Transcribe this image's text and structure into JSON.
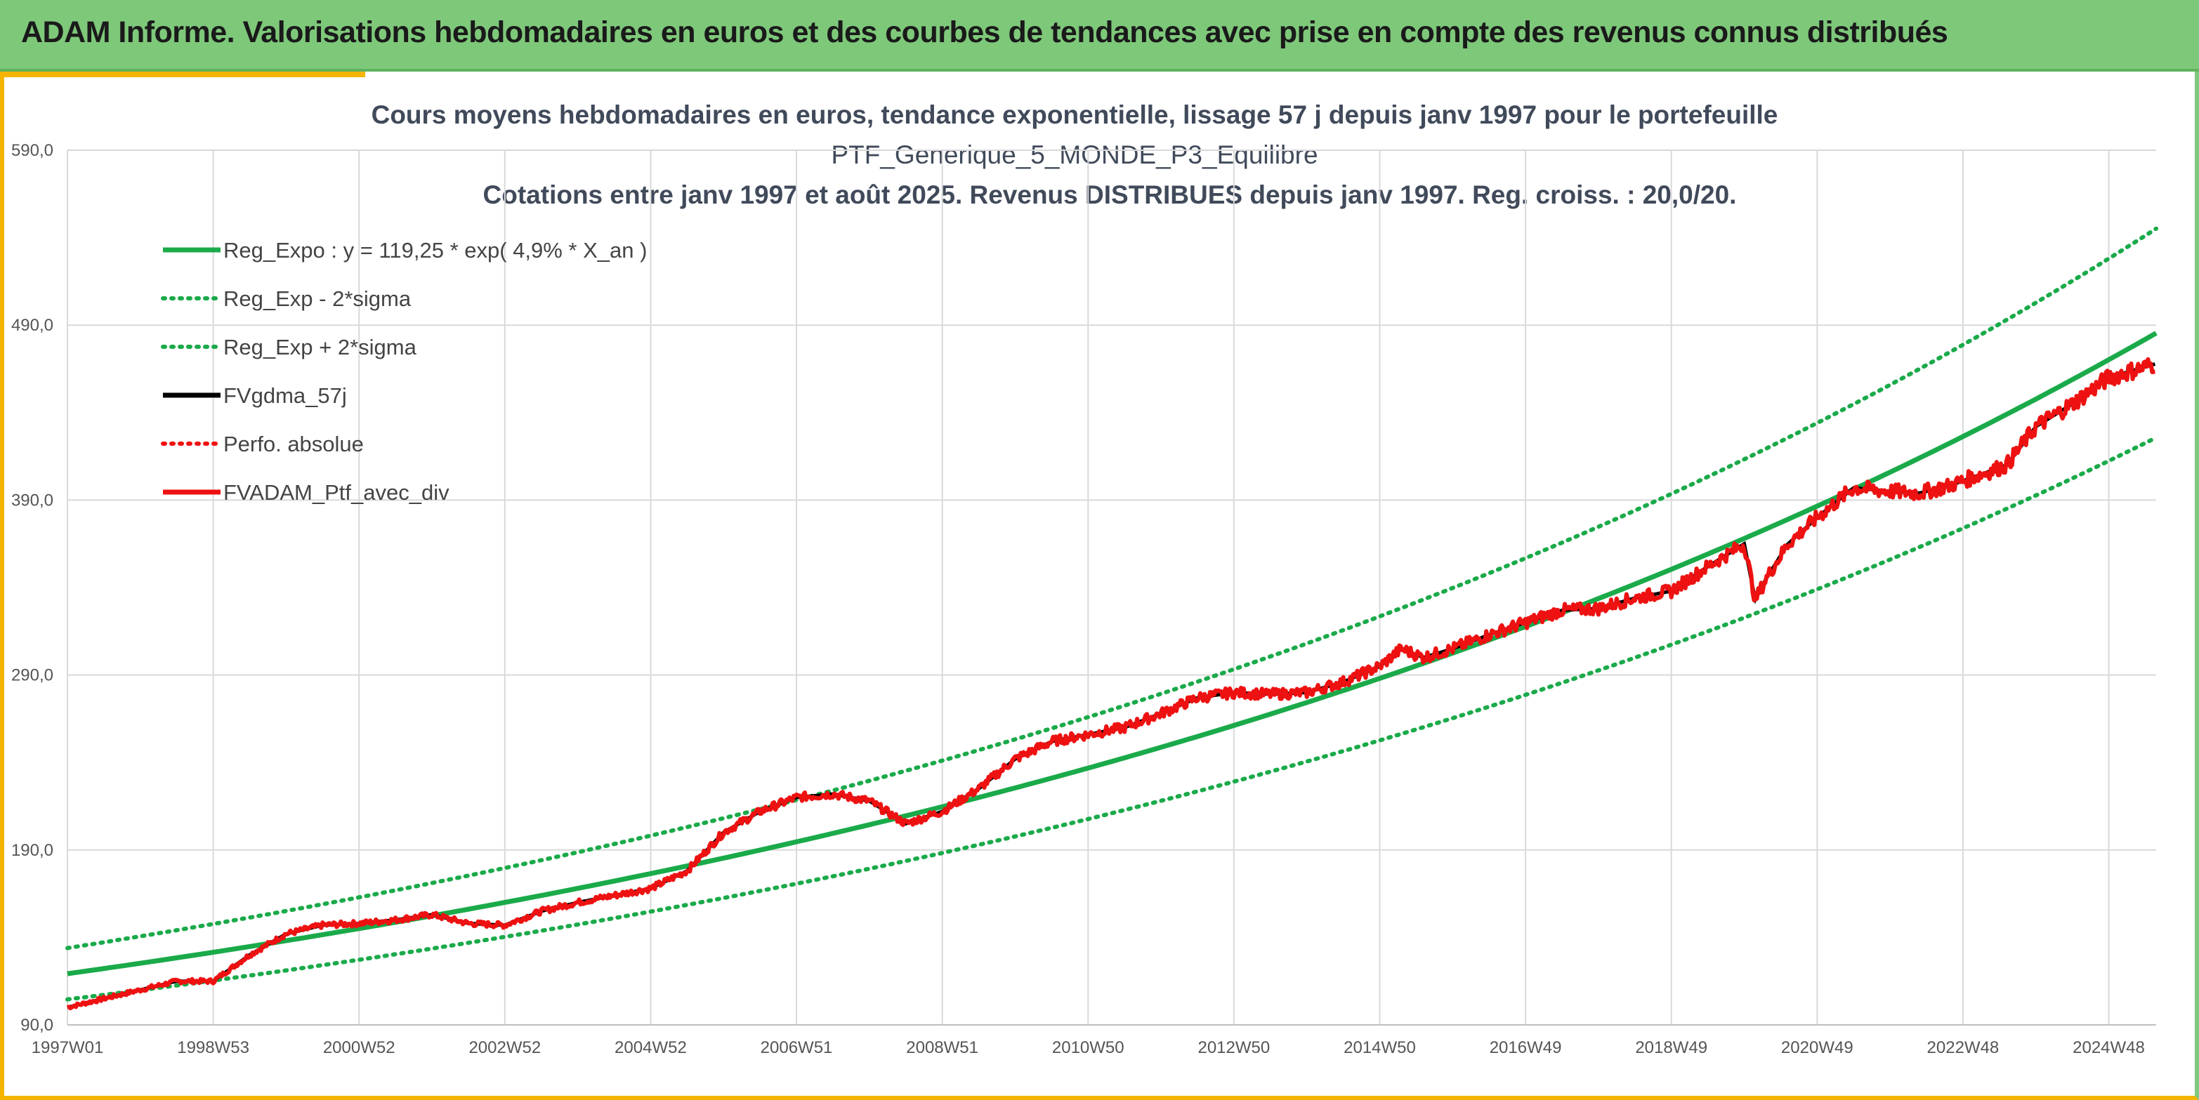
{
  "header": {
    "title": "ADAM Informe. Valorisations hebdomadaires en euros et des courbes de tendances avec prise en compte des revenus connus distribués"
  },
  "colors": {
    "header_bg": "#7ec87a",
    "accent": "#f4b400",
    "reg_green": "#1aaa4a",
    "ptf_red": "#ee1111",
    "ma_black": "#000000"
  },
  "chart_data": {
    "type": "line",
    "title_lines": [
      "Cours moyens hebdomadaires en euros, tendance exponentielle, lissage 57 j depuis janv 1997 pour le portefeuille",
      "PTF_Generique_5_MONDE_P3_Equilibre",
      "Cotations entre janv 1997 et août 2025. Revenus DISTRIBUES depuis janv 1997. Reg. croiss. : 20,0/20."
    ],
    "x_tick_labels": [
      "1997W01",
      "1998W53",
      "2000W52",
      "2002W52",
      "2004W52",
      "2006W51",
      "2008W51",
      "2010W50",
      "2012W50",
      "2014W50",
      "2016W49",
      "2018W49",
      "2020W49",
      "2022W48",
      "2024W48"
    ],
    "x_tick_years": [
      1997.0,
      1999.0,
      2001.0,
      2003.0,
      2005.0,
      2007.0,
      2009.0,
      2011.0,
      2013.0,
      2015.0,
      2017.0,
      2019.0,
      2021.0,
      2023.0,
      2025.0
    ],
    "y_tick_labels": [
      "90,0",
      "190,0",
      "290,0",
      "390,0",
      "490,0",
      "590,0"
    ],
    "y_ticks": [
      90,
      190,
      290,
      390,
      490,
      590
    ],
    "xlim": [
      1997.0,
      2025.65
    ],
    "ylim": [
      90,
      590
    ],
    "grid": true,
    "legend_position": "top-left",
    "regression": {
      "a": 119.25,
      "rate": 0.049,
      "sigma_factor": 0.123
    },
    "series": [
      {
        "name": "Reg_Expo : y = 119,25 * exp( 4,9% *  X_an )",
        "style": "solid",
        "color": "#1aaa4a",
        "kind": "reg"
      },
      {
        "name": "Reg_Exp - 2*sigma",
        "style": "dotted",
        "color": "#1aaa4a",
        "kind": "reg_low"
      },
      {
        "name": "Reg_Exp + 2*sigma",
        "style": "dotted",
        "color": "#1aaa4a",
        "kind": "reg_high"
      },
      {
        "name": "FVgdma_57j",
        "style": "solid",
        "color": "#000000",
        "kind": "ma"
      },
      {
        "name": "Perfo. absolue",
        "style": "dotted",
        "color": "#ee1111",
        "kind": "perfo"
      },
      {
        "name": "FVADAM_Ptf_avec_div",
        "style": "solid",
        "color": "#ee1111",
        "kind": "ptf",
        "x": [
          1997.0,
          1997.5,
          1998.0,
          1998.5,
          1999.0,
          1999.5,
          2000.0,
          2000.5,
          2001.0,
          2001.5,
          2002.0,
          2002.5,
          2003.0,
          2003.5,
          2004.0,
          2004.5,
          2005.0,
          2005.5,
          2006.0,
          2006.5,
          2007.0,
          2007.5,
          2008.0,
          2008.5,
          2009.0,
          2009.5,
          2010.0,
          2010.5,
          2011.0,
          2011.5,
          2012.0,
          2012.5,
          2013.0,
          2013.5,
          2014.0,
          2014.5,
          2015.0,
          2015.3,
          2015.6,
          2016.0,
          2016.5,
          2017.0,
          2017.5,
          2018.0,
          2018.5,
          2019.0,
          2019.5,
          2020.0,
          2020.15,
          2020.3,
          2020.6,
          2021.0,
          2021.5,
          2022.0,
          2022.4,
          2022.8,
          2023.2,
          2023.6,
          2024.0,
          2024.5,
          2025.0,
          2025.65
        ],
        "y": [
          100,
          105,
          110,
          115,
          115,
          130,
          142,
          147,
          148,
          150,
          153,
          148,
          147,
          155,
          160,
          164,
          168,
          178,
          200,
          212,
          220,
          222,
          218,
          205,
          212,
          225,
          242,
          252,
          256,
          260,
          268,
          277,
          280,
          279,
          280,
          286,
          295,
          305,
          300,
          305,
          313,
          320,
          327,
          328,
          334,
          338,
          352,
          365,
          333,
          345,
          365,
          380,
          397,
          395,
          394,
          398,
          404,
          410,
          432,
          445,
          460,
          468
        ]
      }
    ]
  }
}
